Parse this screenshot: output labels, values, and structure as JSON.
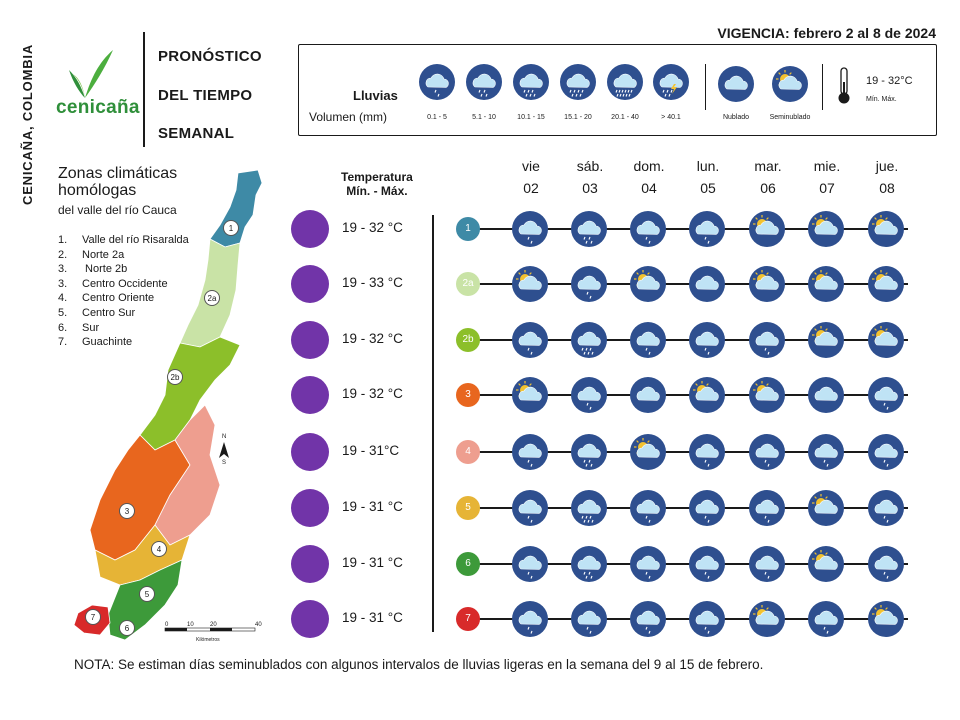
{
  "side_text": "CENICAÑA, COLOMBIA",
  "logo_text": "cenicaña",
  "title": [
    "PRONÓSTICO",
    "DEL TIEMPO",
    "SEMANAL"
  ],
  "vigencia": "VIGENCIA: febrero 2 al 8 de 2024",
  "legend": {
    "lluvias_label": "Lluvias",
    "volumen_label": "Volumen (mm)",
    "rain_classes": [
      {
        "icon": "rain-1",
        "caption": "0.1 - 5"
      },
      {
        "icon": "rain-2",
        "caption": "5.1 - 10"
      },
      {
        "icon": "rain-3",
        "caption": "10.1 - 15"
      },
      {
        "icon": "rain-4",
        "caption": "15.1 - 20"
      },
      {
        "icon": "rain-5",
        "caption": "20.1 - 40"
      },
      {
        "icon": "storm",
        "caption": "> 40.1"
      }
    ],
    "sky_classes": [
      {
        "icon": "cloudy",
        "caption": "Nublado"
      },
      {
        "icon": "partly-cloudy",
        "caption": "Seminublado"
      }
    ],
    "thermometer_range": "19 - 32°C",
    "thermometer_minmax": "Mín.   Máx."
  },
  "zones": {
    "title": "Zonas climáticas homólogas",
    "subtitle": "del valle del río Cauca",
    "list": [
      {
        "num": "1.",
        "name": "Valle del río Risaralda"
      },
      {
        "num": "2.",
        "name": "Norte 2a"
      },
      {
        "num": "3.",
        "name": " Norte 2b"
      },
      {
        "num": "3.",
        "name": "Centro Occidente"
      },
      {
        "num": "4.",
        "name": "Centro Oriente"
      },
      {
        "num": "5.",
        "name": "Centro Sur"
      },
      {
        "num": "6.",
        "name": "Sur"
      },
      {
        "num": "7.",
        "name": "Guachinte"
      }
    ]
  },
  "map": {
    "labels": [
      "1",
      "2a",
      "2b",
      "3",
      "4",
      "5",
      "6",
      "7"
    ],
    "scale_ticks": [
      "0",
      "10",
      "20",
      "",
      "40"
    ],
    "scale_unit": "Kilómetros",
    "north_n": "N",
    "north_s": "S"
  },
  "temperature_header": [
    "Temperatura",
    "Mín. -  Máx."
  ],
  "days": [
    {
      "name": "vie",
      "num": "02"
    },
    {
      "name": "sáb.",
      "num": "03"
    },
    {
      "name": "dom.",
      "num": "04"
    },
    {
      "name": "lun.",
      "num": "05"
    },
    {
      "name": "mar.",
      "num": "06"
    },
    {
      "name": "mie.",
      "num": "07"
    },
    {
      "name": "jue.",
      "num": "08"
    }
  ],
  "colors": {
    "icon_circle": "#2e4f8f",
    "temp_dot": "#7134a8",
    "zone_1": "#3e8aa6",
    "zone_2a": "#c9e3a6",
    "zone_2b": "#8cbf2a",
    "zone_3": "#e8661e",
    "zone_4": "#ee9e8f",
    "zone_5": "#e6b436",
    "zone_6": "#3d9a3a",
    "zone_7": "#d82a2a"
  },
  "forecast": [
    {
      "zone": "1",
      "temp": "19 - 32 °C",
      "icons": [
        "rain-1",
        "rain-2",
        "rain-1",
        "rain-1",
        "partly-cloudy",
        "partly-cloudy",
        "partly-cloudy"
      ]
    },
    {
      "zone": "2a",
      "temp": "19 - 33 °C",
      "icons": [
        "partly-cloudy",
        "rain-1",
        "partly-cloudy",
        "cloudy",
        "partly-cloudy",
        "partly-cloudy",
        "partly-cloudy"
      ]
    },
    {
      "zone": "2b",
      "temp": "19 - 32 °C",
      "icons": [
        "rain-1",
        "rain-3",
        "rain-1",
        "rain-1",
        "rain-1",
        "partly-cloudy",
        "partly-cloudy"
      ]
    },
    {
      "zone": "3",
      "temp": "19 - 32 °C",
      "icons": [
        "partly-cloudy",
        "rain-1",
        "cloudy",
        "partly-cloudy",
        "partly-cloudy",
        "cloudy",
        "rain-1"
      ]
    },
    {
      "zone": "4",
      "temp": "19 - 31°C",
      "icons": [
        "rain-1",
        "rain-2",
        "partly-cloudy",
        "rain-1",
        "rain-1",
        "rain-1",
        "rain-1"
      ]
    },
    {
      "zone": "5",
      "temp": "19 - 31 °C",
      "icons": [
        "rain-1",
        "rain-3",
        "rain-1",
        "rain-1",
        "rain-1",
        "partly-cloudy",
        "rain-1"
      ]
    },
    {
      "zone": "6",
      "temp": "19 - 31 °C",
      "icons": [
        "rain-1",
        "rain-2",
        "rain-1",
        "rain-1",
        "rain-1",
        "partly-cloudy",
        "rain-1"
      ]
    },
    {
      "zone": "7",
      "temp": "19 - 31 °C",
      "icons": [
        "rain-1",
        "rain-1",
        "rain-1",
        "rain-1",
        "partly-cloudy",
        "rain-1",
        "partly-cloudy"
      ]
    }
  ],
  "nota": "NOTA: Se estiman días seminublados con algunos intervalos de lluvias ligeras en la semana del 9 al 15 de febrero."
}
